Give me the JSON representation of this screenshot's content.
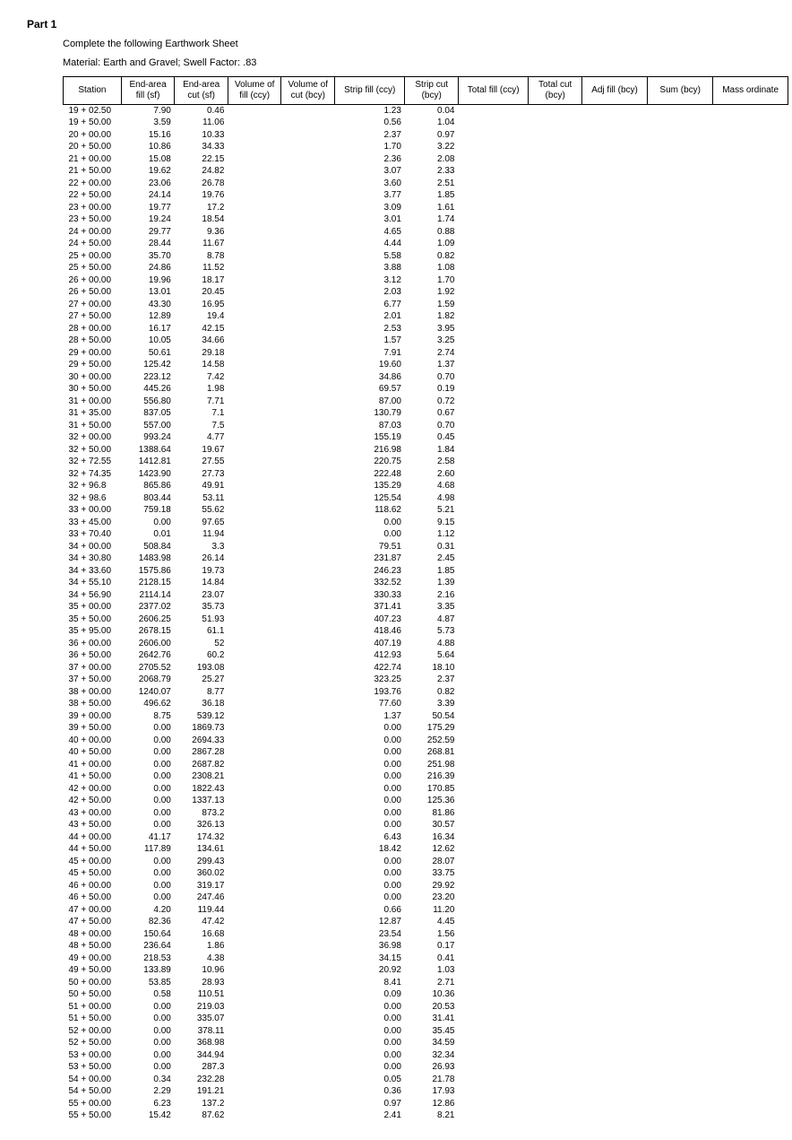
{
  "heading": "Part 1",
  "subline1": "Complete the following Earthwork Sheet",
  "subline2": "Material: Earth and Gravel; Swell Factor: .83",
  "columns": [
    "Station",
    "End-area fill (sf)",
    "End-area cut (sf)",
    "Volume of fill (ccy)",
    "Volume of cut (bcy)",
    "Strip fill (ccy)",
    "Strip cut (bcy)",
    "Total fill (ccy)",
    "Total cut (bcy)",
    "Adj fill    (bcy)",
    "Sum    (bcy)",
    "Mass ordinate"
  ],
  "rows": [
    [
      "19 + 02.50",
      "7.90",
      "0.46",
      "",
      "",
      "1.23",
      "0.04",
      "",
      "",
      "",
      "",
      ""
    ],
    [
      "19 + 50.00",
      "3.59",
      "11.06",
      "",
      "",
      "0.56",
      "1.04",
      "",
      "",
      "",
      "",
      ""
    ],
    [
      "20 + 00.00",
      "15.16",
      "10.33",
      "",
      "",
      "2.37",
      "0.97",
      "",
      "",
      "",
      "",
      ""
    ],
    [
      "20 + 50.00",
      "10.86",
      "34.33",
      "",
      "",
      "1.70",
      "3.22",
      "",
      "",
      "",
      "",
      ""
    ],
    [
      "21 + 00.00",
      "15.08",
      "22.15",
      "",
      "",
      "2.36",
      "2.08",
      "",
      "",
      "",
      "",
      ""
    ],
    [
      "21 + 50.00",
      "19.62",
      "24.82",
      "",
      "",
      "3.07",
      "2.33",
      "",
      "",
      "",
      "",
      ""
    ],
    [
      "22 + 00.00",
      "23.06",
      "26.78",
      "",
      "",
      "3.60",
      "2.51",
      "",
      "",
      "",
      "",
      ""
    ],
    [
      "22 + 50.00",
      "24.14",
      "19.76",
      "",
      "",
      "3.77",
      "1.85",
      "",
      "",
      "",
      "",
      ""
    ],
    [
      "23 + 00.00",
      "19.77",
      "17.2",
      "",
      "",
      "3.09",
      "1.61",
      "",
      "",
      "",
      "",
      ""
    ],
    [
      "23 + 50.00",
      "19.24",
      "18.54",
      "",
      "",
      "3.01",
      "1.74",
      "",
      "",
      "",
      "",
      ""
    ],
    [
      "24 + 00.00",
      "29.77",
      "9.36",
      "",
      "",
      "4.65",
      "0.88",
      "",
      "",
      "",
      "",
      ""
    ],
    [
      "24 + 50.00",
      "28.44",
      "11.67",
      "",
      "",
      "4.44",
      "1.09",
      "",
      "",
      "",
      "",
      ""
    ],
    [
      "25 + 00.00",
      "35.70",
      "8.78",
      "",
      "",
      "5.58",
      "0.82",
      "",
      "",
      "",
      "",
      ""
    ],
    [
      "25 + 50.00",
      "24.86",
      "11.52",
      "",
      "",
      "3.88",
      "1.08",
      "",
      "",
      "",
      "",
      ""
    ],
    [
      "26 + 00.00",
      "19.96",
      "18.17",
      "",
      "",
      "3.12",
      "1.70",
      "",
      "",
      "",
      "",
      ""
    ],
    [
      "26 + 50.00",
      "13.01",
      "20.45",
      "",
      "",
      "2.03",
      "1.92",
      "",
      "",
      "",
      "",
      ""
    ],
    [
      "27 + 00.00",
      "43.30",
      "16.95",
      "",
      "",
      "6.77",
      "1.59",
      "",
      "",
      "",
      "",
      ""
    ],
    [
      "27 + 50.00",
      "12.89",
      "19.4",
      "",
      "",
      "2.01",
      "1.82",
      "",
      "",
      "",
      "",
      ""
    ],
    [
      "28 + 00.00",
      "16.17",
      "42.15",
      "",
      "",
      "2.53",
      "3.95",
      "",
      "",
      "",
      "",
      ""
    ],
    [
      "28 + 50.00",
      "10.05",
      "34.66",
      "",
      "",
      "1.57",
      "3.25",
      "",
      "",
      "",
      "",
      ""
    ],
    [
      "29 + 00.00",
      "50.61",
      "29.18",
      "",
      "",
      "7.91",
      "2.74",
      "",
      "",
      "",
      "",
      ""
    ],
    [
      "29 + 50.00",
      "125.42",
      "14.58",
      "",
      "",
      "19.60",
      "1.37",
      "",
      "",
      "",
      "",
      ""
    ],
    [
      "30 + 00.00",
      "223.12",
      "7.42",
      "",
      "",
      "34.86",
      "0.70",
      "",
      "",
      "",
      "",
      ""
    ],
    [
      "30 + 50.00",
      "445.26",
      "1.98",
      "",
      "",
      "69.57",
      "0.19",
      "",
      "",
      "",
      "",
      ""
    ],
    [
      "31 + 00.00",
      "556.80",
      "7.71",
      "",
      "",
      "87.00",
      "0.72",
      "",
      "",
      "",
      "",
      ""
    ],
    [
      "31 + 35.00",
      "837.05",
      "7.1",
      "",
      "",
      "130.79",
      "0.67",
      "",
      "",
      "",
      "",
      ""
    ],
    [
      "31 + 50.00",
      "557.00",
      "7.5",
      "",
      "",
      "87.03",
      "0.70",
      "",
      "",
      "",
      "",
      ""
    ],
    [
      "32 + 00.00",
      "993.24",
      "4.77",
      "",
      "",
      "155.19",
      "0.45",
      "",
      "",
      "",
      "",
      ""
    ],
    [
      "32 + 50.00",
      "1388.64",
      "19.67",
      "",
      "",
      "216.98",
      "1.84",
      "",
      "",
      "",
      "",
      ""
    ],
    [
      "32 + 72.55",
      "1412.81",
      "27.55",
      "",
      "",
      "220.75",
      "2.58",
      "",
      "",
      "",
      "",
      ""
    ],
    [
      "32 + 74.35",
      "1423.90",
      "27.73",
      "",
      "",
      "222.48",
      "2.60",
      "",
      "",
      "",
      "",
      ""
    ],
    [
      "32 + 96.8",
      "865.86",
      "49.91",
      "",
      "",
      "135.29",
      "4.68",
      "",
      "",
      "",
      "",
      ""
    ],
    [
      "32 + 98.6",
      "803.44",
      "53.11",
      "",
      "",
      "125.54",
      "4.98",
      "",
      "",
      "",
      "",
      ""
    ],
    [
      "33 + 00.00",
      "759.18",
      "55.62",
      "",
      "",
      "118.62",
      "5.21",
      "",
      "",
      "",
      "",
      ""
    ],
    [
      "33 + 45.00",
      "0.00",
      "97.65",
      "",
      "",
      "0.00",
      "9.15",
      "",
      "",
      "",
      "",
      ""
    ],
    [
      "33 + 70.40",
      "0.01",
      "11.94",
      "",
      "",
      "0.00",
      "1.12",
      "",
      "",
      "",
      "",
      ""
    ],
    [
      "34 + 00.00",
      "508.84",
      "3.3",
      "",
      "",
      "79.51",
      "0.31",
      "",
      "",
      "",
      "",
      ""
    ],
    [
      "34 + 30.80",
      "1483.98",
      "26.14",
      "",
      "",
      "231.87",
      "2.45",
      "",
      "",
      "",
      "",
      ""
    ],
    [
      "34 + 33.60",
      "1575.86",
      "19.73",
      "",
      "",
      "246.23",
      "1.85",
      "",
      "",
      "",
      "",
      ""
    ],
    [
      "34 + 55.10",
      "2128.15",
      "14.84",
      "",
      "",
      "332.52",
      "1.39",
      "",
      "",
      "",
      "",
      ""
    ],
    [
      "34 + 56.90",
      "2114.14",
      "23.07",
      "",
      "",
      "330.33",
      "2.16",
      "",
      "",
      "",
      "",
      ""
    ],
    [
      "35 + 00.00",
      "2377.02",
      "35.73",
      "",
      "",
      "371.41",
      "3.35",
      "",
      "",
      "",
      "",
      ""
    ],
    [
      "35 + 50.00",
      "2606.25",
      "51.93",
      "",
      "",
      "407.23",
      "4.87",
      "",
      "",
      "",
      "",
      ""
    ],
    [
      "35 + 95.00",
      "2678.15",
      "61.1",
      "",
      "",
      "418.46",
      "5.73",
      "",
      "",
      "",
      "",
      ""
    ],
    [
      "36 + 00.00",
      "2606.00",
      "52",
      "",
      "",
      "407.19",
      "4.88",
      "",
      "",
      "",
      "",
      ""
    ],
    [
      "36 + 50.00",
      "2642.76",
      "60.2",
      "",
      "",
      "412.93",
      "5.64",
      "",
      "",
      "",
      "",
      ""
    ],
    [
      "37 + 00.00",
      "2705.52",
      "193.08",
      "",
      "",
      "422.74",
      "18.10",
      "",
      "",
      "",
      "",
      ""
    ],
    [
      "37 + 50.00",
      "2068.79",
      "25.27",
      "",
      "",
      "323.25",
      "2.37",
      "",
      "",
      "",
      "",
      ""
    ],
    [
      "38 + 00.00",
      "1240.07",
      "8.77",
      "",
      "",
      "193.76",
      "0.82",
      "",
      "",
      "",
      "",
      ""
    ],
    [
      "38 + 50.00",
      "496.62",
      "36.18",
      "",
      "",
      "77.60",
      "3.39",
      "",
      "",
      "",
      "",
      ""
    ],
    [
      "39 + 00.00",
      "8.75",
      "539.12",
      "",
      "",
      "1.37",
      "50.54",
      "",
      "",
      "",
      "",
      ""
    ],
    [
      "39 + 50.00",
      "0.00",
      "1869.73",
      "",
      "",
      "0.00",
      "175.29",
      "",
      "",
      "",
      "",
      ""
    ],
    [
      "40 + 00.00",
      "0.00",
      "2694.33",
      "",
      "",
      "0.00",
      "252.59",
      "",
      "",
      "",
      "",
      ""
    ],
    [
      "40 + 50.00",
      "0.00",
      "2867.28",
      "",
      "",
      "0.00",
      "268.81",
      "",
      "",
      "",
      "",
      ""
    ],
    [
      "41 + 00.00",
      "0.00",
      "2687.82",
      "",
      "",
      "0.00",
      "251.98",
      "",
      "",
      "",
      "",
      ""
    ],
    [
      "41 + 50.00",
      "0.00",
      "2308.21",
      "",
      "",
      "0.00",
      "216.39",
      "",
      "",
      "",
      "",
      ""
    ],
    [
      "42 + 00.00",
      "0.00",
      "1822.43",
      "",
      "",
      "0.00",
      "170.85",
      "",
      "",
      "",
      "",
      ""
    ],
    [
      "42 + 50.00",
      "0.00",
      "1337.13",
      "",
      "",
      "0.00",
      "125.36",
      "",
      "",
      "",
      "",
      ""
    ],
    [
      "43 + 00.00",
      "0.00",
      "873.2",
      "",
      "",
      "0.00",
      "81.86",
      "",
      "",
      "",
      "",
      ""
    ],
    [
      "43 + 50.00",
      "0.00",
      "326.13",
      "",
      "",
      "0.00",
      "30.57",
      "",
      "",
      "",
      "",
      ""
    ],
    [
      "44 + 00.00",
      "41.17",
      "174.32",
      "",
      "",
      "6.43",
      "16.34",
      "",
      "",
      "",
      "",
      ""
    ],
    [
      "44 + 50.00",
      "117.89",
      "134.61",
      "",
      "",
      "18.42",
      "12.62",
      "",
      "",
      "",
      "",
      ""
    ],
    [
      "45 + 00.00",
      "0.00",
      "299.43",
      "",
      "",
      "0.00",
      "28.07",
      "",
      "",
      "",
      "",
      ""
    ],
    [
      "45 + 50.00",
      "0.00",
      "360.02",
      "",
      "",
      "0.00",
      "33.75",
      "",
      "",
      "",
      "",
      ""
    ],
    [
      "46 + 00.00",
      "0.00",
      "319.17",
      "",
      "",
      "0.00",
      "29.92",
      "",
      "",
      "",
      "",
      ""
    ],
    [
      "46 + 50.00",
      "0.00",
      "247.46",
      "",
      "",
      "0.00",
      "23.20",
      "",
      "",
      "",
      "",
      ""
    ],
    [
      "47 + 00.00",
      "4.20",
      "119.44",
      "",
      "",
      "0.66",
      "11.20",
      "",
      "",
      "",
      "",
      ""
    ],
    [
      "47 + 50.00",
      "82.36",
      "47.42",
      "",
      "",
      "12.87",
      "4.45",
      "",
      "",
      "",
      "",
      ""
    ],
    [
      "48 + 00.00",
      "150.64",
      "16.68",
      "",
      "",
      "23.54",
      "1.56",
      "",
      "",
      "",
      "",
      ""
    ],
    [
      "48 + 50.00",
      "236.64",
      "1.86",
      "",
      "",
      "36.98",
      "0.17",
      "",
      "",
      "",
      "",
      ""
    ],
    [
      "49 + 00.00",
      "218.53",
      "4.38",
      "",
      "",
      "34.15",
      "0.41",
      "",
      "",
      "",
      "",
      ""
    ],
    [
      "49 + 50.00",
      "133.89",
      "10.96",
      "",
      "",
      "20.92",
      "1.03",
      "",
      "",
      "",
      "",
      ""
    ],
    [
      "50 + 00.00",
      "53.85",
      "28.93",
      "",
      "",
      "8.41",
      "2.71",
      "",
      "",
      "",
      "",
      ""
    ],
    [
      "50 + 50.00",
      "0.58",
      "110.51",
      "",
      "",
      "0.09",
      "10.36",
      "",
      "",
      "",
      "",
      ""
    ],
    [
      "51 + 00.00",
      "0.00",
      "219.03",
      "",
      "",
      "0.00",
      "20.53",
      "",
      "",
      "",
      "",
      ""
    ],
    [
      "51 + 50.00",
      "0.00",
      "335.07",
      "",
      "",
      "0.00",
      "31.41",
      "",
      "",
      "",
      "",
      ""
    ],
    [
      "52 + 00.00",
      "0.00",
      "378.11",
      "",
      "",
      "0.00",
      "35.45",
      "",
      "",
      "",
      "",
      ""
    ],
    [
      "52 + 50.00",
      "0.00",
      "368.98",
      "",
      "",
      "0.00",
      "34.59",
      "",
      "",
      "",
      "",
      ""
    ],
    [
      "53 + 00.00",
      "0.00",
      "344.94",
      "",
      "",
      "0.00",
      "32.34",
      "",
      "",
      "",
      "",
      ""
    ],
    [
      "53 + 50.00",
      "0.00",
      "287.3",
      "",
      "",
      "0.00",
      "26.93",
      "",
      "",
      "",
      "",
      ""
    ],
    [
      "54 + 00.00",
      "0.34",
      "232.28",
      "",
      "",
      "0.05",
      "21.78",
      "",
      "",
      "",
      "",
      ""
    ],
    [
      "54 + 50.00",
      "2.29",
      "191.21",
      "",
      "",
      "0.36",
      "17.93",
      "",
      "",
      "",
      "",
      ""
    ],
    [
      "55 + 00.00",
      "6.23",
      "137.2",
      "",
      "",
      "0.97",
      "12.86",
      "",
      "",
      "",
      "",
      ""
    ],
    [
      "55 + 50.00",
      "15.42",
      "87.62",
      "",
      "",
      "2.41",
      "8.21",
      "",
      "",
      "",
      "",
      ""
    ]
  ]
}
